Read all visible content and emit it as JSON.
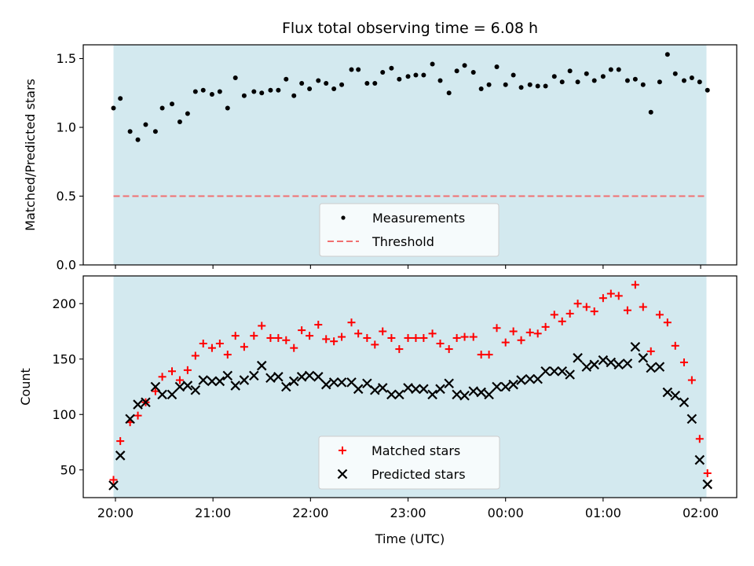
{
  "title": "Flux total observing time = 6.08 h",
  "colors": {
    "band": "#d3e9ef",
    "threshold": "#f07070",
    "matched": "#ff0000",
    "predicted": "#000000",
    "measurement": "#000000"
  },
  "x_ticks": [
    "20:00",
    "21:00",
    "22:00",
    "23:00",
    "00:00",
    "01:00",
    "02:00"
  ],
  "xlabel": "Time (UTC)",
  "chart_data": [
    {
      "type": "scatter",
      "ylabel": "Matched/Predicted stars",
      "ylim": [
        0,
        1.6
      ],
      "y_ticks": [
        0.0,
        0.5,
        1.0,
        1.5
      ],
      "x_units": "hours after 20:00 UTC",
      "xlim": [
        -0.33,
        6.37
      ],
      "observing_window": [
        -0.02,
        6.06
      ],
      "threshold": 0.5,
      "legend": [
        "Measurements",
        "Threshold"
      ],
      "legend_position": "lower center",
      "series": [
        {
          "name": "Measurements",
          "x": [
            -0.02,
            0.05,
            0.15,
            0.23,
            0.31,
            0.41,
            0.48,
            0.58,
            0.66,
            0.74,
            0.82,
            0.9,
            0.99,
            1.07,
            1.15,
            1.23,
            1.32,
            1.42,
            1.5,
            1.59,
            1.67,
            1.75,
            1.83,
            1.91,
            1.99,
            2.08,
            2.16,
            2.24,
            2.32,
            2.42,
            2.49,
            2.58,
            2.66,
            2.74,
            2.83,
            2.91,
            3.0,
            3.08,
            3.16,
            3.25,
            3.33,
            3.42,
            3.5,
            3.58,
            3.67,
            3.75,
            3.83,
            3.91,
            4.0,
            4.08,
            4.16,
            4.25,
            4.33,
            4.41,
            4.5,
            4.58,
            4.66,
            4.74,
            4.83,
            4.91,
            5.0,
            5.08,
            5.16,
            5.25,
            5.33,
            5.41,
            5.49,
            5.58,
            5.66,
            5.74,
            5.83,
            5.91,
            5.99,
            6.07
          ],
          "y": [
            1.14,
            1.21,
            0.97,
            0.91,
            1.02,
            0.97,
            1.14,
            1.17,
            1.04,
            1.1,
            1.26,
            1.27,
            1.24,
            1.26,
            1.14,
            1.36,
            1.23,
            1.26,
            1.25,
            1.27,
            1.27,
            1.35,
            1.23,
            1.32,
            1.28,
            1.34,
            1.32,
            1.28,
            1.31,
            1.42,
            1.42,
            1.32,
            1.32,
            1.4,
            1.43,
            1.35,
            1.37,
            1.38,
            1.38,
            1.46,
            1.34,
            1.25,
            1.41,
            1.45,
            1.4,
            1.28,
            1.31,
            1.44,
            1.31,
            1.38,
            1.29,
            1.31,
            1.3,
            1.3,
            1.37,
            1.33,
            1.41,
            1.33,
            1.39,
            1.34,
            1.37,
            1.42,
            1.42,
            1.34,
            1.35,
            1.31,
            1.11,
            1.33,
            1.53,
            1.39,
            1.34,
            1.36,
            1.33,
            1.27
          ]
        }
      ]
    },
    {
      "type": "scatter",
      "ylabel": "Count",
      "ylim": [
        25,
        225
      ],
      "y_ticks": [
        50,
        100,
        150,
        200
      ],
      "x_units": "hours after 20:00 UTC",
      "xlim": [
        -0.33,
        6.37
      ],
      "observing_window": [
        -0.02,
        6.06
      ],
      "legend": [
        "Matched stars",
        "Predicted stars"
      ],
      "legend_position": "lower center",
      "series": [
        {
          "name": "Matched stars",
          "x": [
            -0.02,
            0.05,
            0.15,
            0.23,
            0.31,
            0.41,
            0.48,
            0.58,
            0.66,
            0.74,
            0.82,
            0.9,
            0.99,
            1.07,
            1.15,
            1.23,
            1.32,
            1.42,
            1.5,
            1.59,
            1.67,
            1.75,
            1.83,
            1.91,
            1.99,
            2.08,
            2.16,
            2.24,
            2.32,
            2.42,
            2.49,
            2.58,
            2.66,
            2.74,
            2.83,
            2.91,
            3.0,
            3.08,
            3.16,
            3.25,
            3.33,
            3.42,
            3.5,
            3.58,
            3.67,
            3.75,
            3.83,
            3.91,
            4.0,
            4.08,
            4.16,
            4.25,
            4.33,
            4.41,
            4.5,
            4.58,
            4.66,
            4.74,
            4.83,
            4.91,
            5.0,
            5.08,
            5.16,
            5.25,
            5.33,
            5.41,
            5.49,
            5.58,
            5.66,
            5.74,
            5.83,
            5.91,
            5.99,
            6.07
          ],
          "y": [
            41,
            76,
            93,
            99,
            111,
            121,
            134,
            139,
            131,
            140,
            153,
            164,
            160,
            164,
            154,
            171,
            161,
            171,
            180,
            169,
            169,
            167,
            160,
            176,
            171,
            181,
            168,
            166,
            170,
            183,
            173,
            169,
            163,
            175,
            169,
            159,
            169,
            169,
            169,
            173,
            164,
            159,
            169,
            170,
            170,
            154,
            154,
            178,
            165,
            175,
            167,
            174,
            173,
            179,
            190,
            184,
            191,
            200,
            197,
            193,
            205,
            209,
            207,
            194,
            217,
            197,
            157,
            190,
            183,
            162,
            147,
            131,
            78,
            47
          ]
        },
        {
          "name": "Predicted stars",
          "x": [
            -0.02,
            0.05,
            0.15,
            0.23,
            0.31,
            0.41,
            0.48,
            0.58,
            0.66,
            0.74,
            0.82,
            0.9,
            0.99,
            1.07,
            1.15,
            1.23,
            1.32,
            1.42,
            1.5,
            1.59,
            1.67,
            1.75,
            1.83,
            1.91,
            1.99,
            2.08,
            2.16,
            2.24,
            2.32,
            2.42,
            2.49,
            2.58,
            2.66,
            2.74,
            2.83,
            2.91,
            3.0,
            3.08,
            3.16,
            3.25,
            3.33,
            3.42,
            3.5,
            3.58,
            3.67,
            3.75,
            3.83,
            3.91,
            4.0,
            4.08,
            4.16,
            4.25,
            4.33,
            4.41,
            4.5,
            4.58,
            4.66,
            4.74,
            4.83,
            4.91,
            5.0,
            5.08,
            5.16,
            5.25,
            5.33,
            5.41,
            5.49,
            5.58,
            5.66,
            5.74,
            5.83,
            5.91,
            5.99,
            6.07
          ],
          "y": [
            36,
            63,
            96,
            109,
            111,
            125,
            118,
            118,
            125,
            126,
            122,
            131,
            130,
            130,
            135,
            126,
            131,
            135,
            144,
            133,
            134,
            125,
            130,
            134,
            135,
            134,
            127,
            129,
            129,
            129,
            123,
            128,
            122,
            124,
            118,
            118,
            124,
            123,
            123,
            118,
            123,
            128,
            118,
            117,
            121,
            120,
            118,
            125,
            125,
            127,
            131,
            132,
            132,
            139,
            139,
            139,
            136,
            151,
            143,
            145,
            149,
            147,
            145,
            146,
            161,
            151,
            142,
            143,
            120,
            117,
            111,
            96,
            59,
            37
          ]
        }
      ]
    }
  ]
}
